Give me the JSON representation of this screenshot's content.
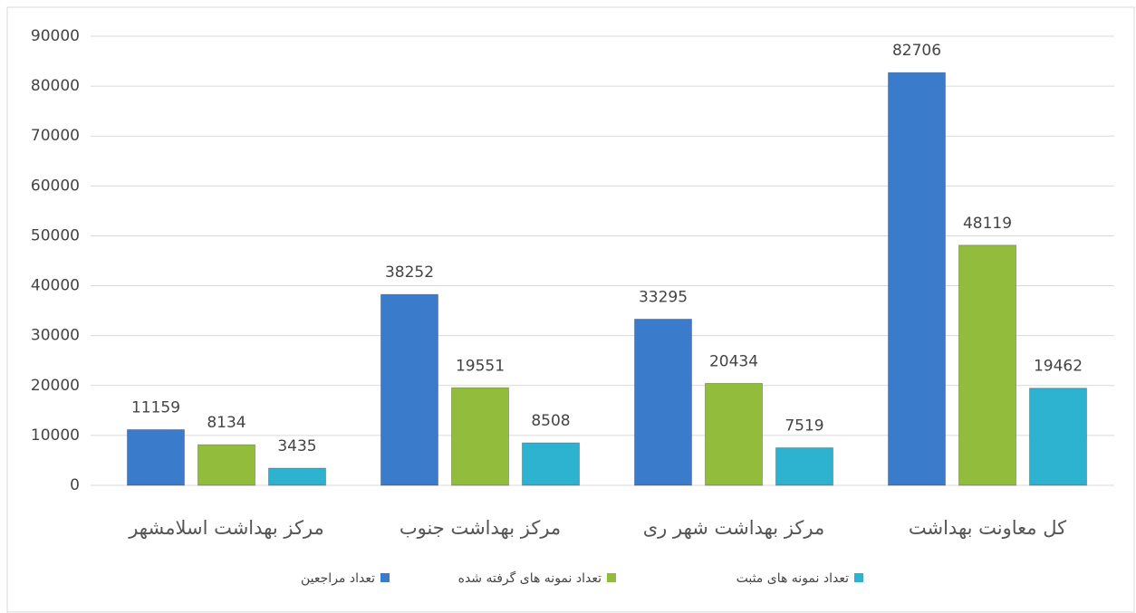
{
  "chart_data": {
    "type": "bar",
    "categories": [
      "مرکز بهداشت اسلامشهر",
      "مرکز بهداشت جنوب",
      "مرکز بهداشت شهر ری",
      "کل معاونت بهداشت"
    ],
    "series": [
      {
        "name": "تعداد مراجعین",
        "color": "#3b7bcb",
        "values": [
          11159,
          38252,
          33295,
          82706
        ]
      },
      {
        "name": "تعداد نمونه های گرفته شده",
        "color": "#92bc3c",
        "values": [
          8134,
          19551,
          20434,
          48119
        ]
      },
      {
        "name": "تعداد نمونه های مثبت",
        "color": "#2db3cf",
        "values": [
          3435,
          8508,
          7519,
          19462
        ]
      }
    ],
    "ylim": [
      0,
      90000
    ],
    "yticks": [
      0,
      10000,
      20000,
      30000,
      40000,
      50000,
      60000,
      70000,
      80000,
      90000
    ],
    "grid": true,
    "legend": "bottom"
  }
}
